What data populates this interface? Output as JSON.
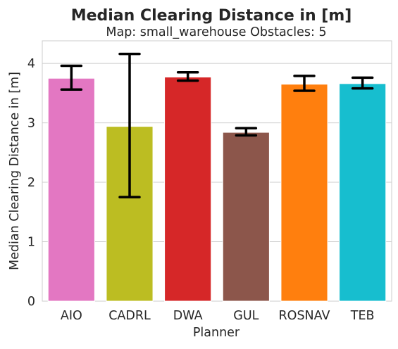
{
  "chart_data": {
    "type": "bar",
    "title": "Median Clearing Distance in [m]",
    "subtitle": "Map: small_warehouse Obstacles: 5",
    "xlabel": "Planner",
    "ylabel": "Median Clearing Distance in [m]",
    "categories": [
      "AIO",
      "CADRL",
      "DWA",
      "GUL",
      "ROSNAV",
      "TEB"
    ],
    "values": [
      3.75,
      2.94,
      3.77,
      2.84,
      3.65,
      3.66
    ],
    "error_low": [
      3.56,
      1.75,
      3.71,
      2.79,
      3.54,
      3.58
    ],
    "error_high": [
      3.96,
      4.16,
      3.85,
      2.91,
      3.79,
      3.76
    ],
    "colors": [
      "#e377c2",
      "#bcbd22",
      "#d62728",
      "#8c564b",
      "#ff7f0e",
      "#17becf"
    ],
    "ylim": [
      0,
      4.38
    ],
    "yticks": [
      0,
      1,
      2,
      3,
      4
    ],
    "grid": true,
    "legend": "none"
  }
}
